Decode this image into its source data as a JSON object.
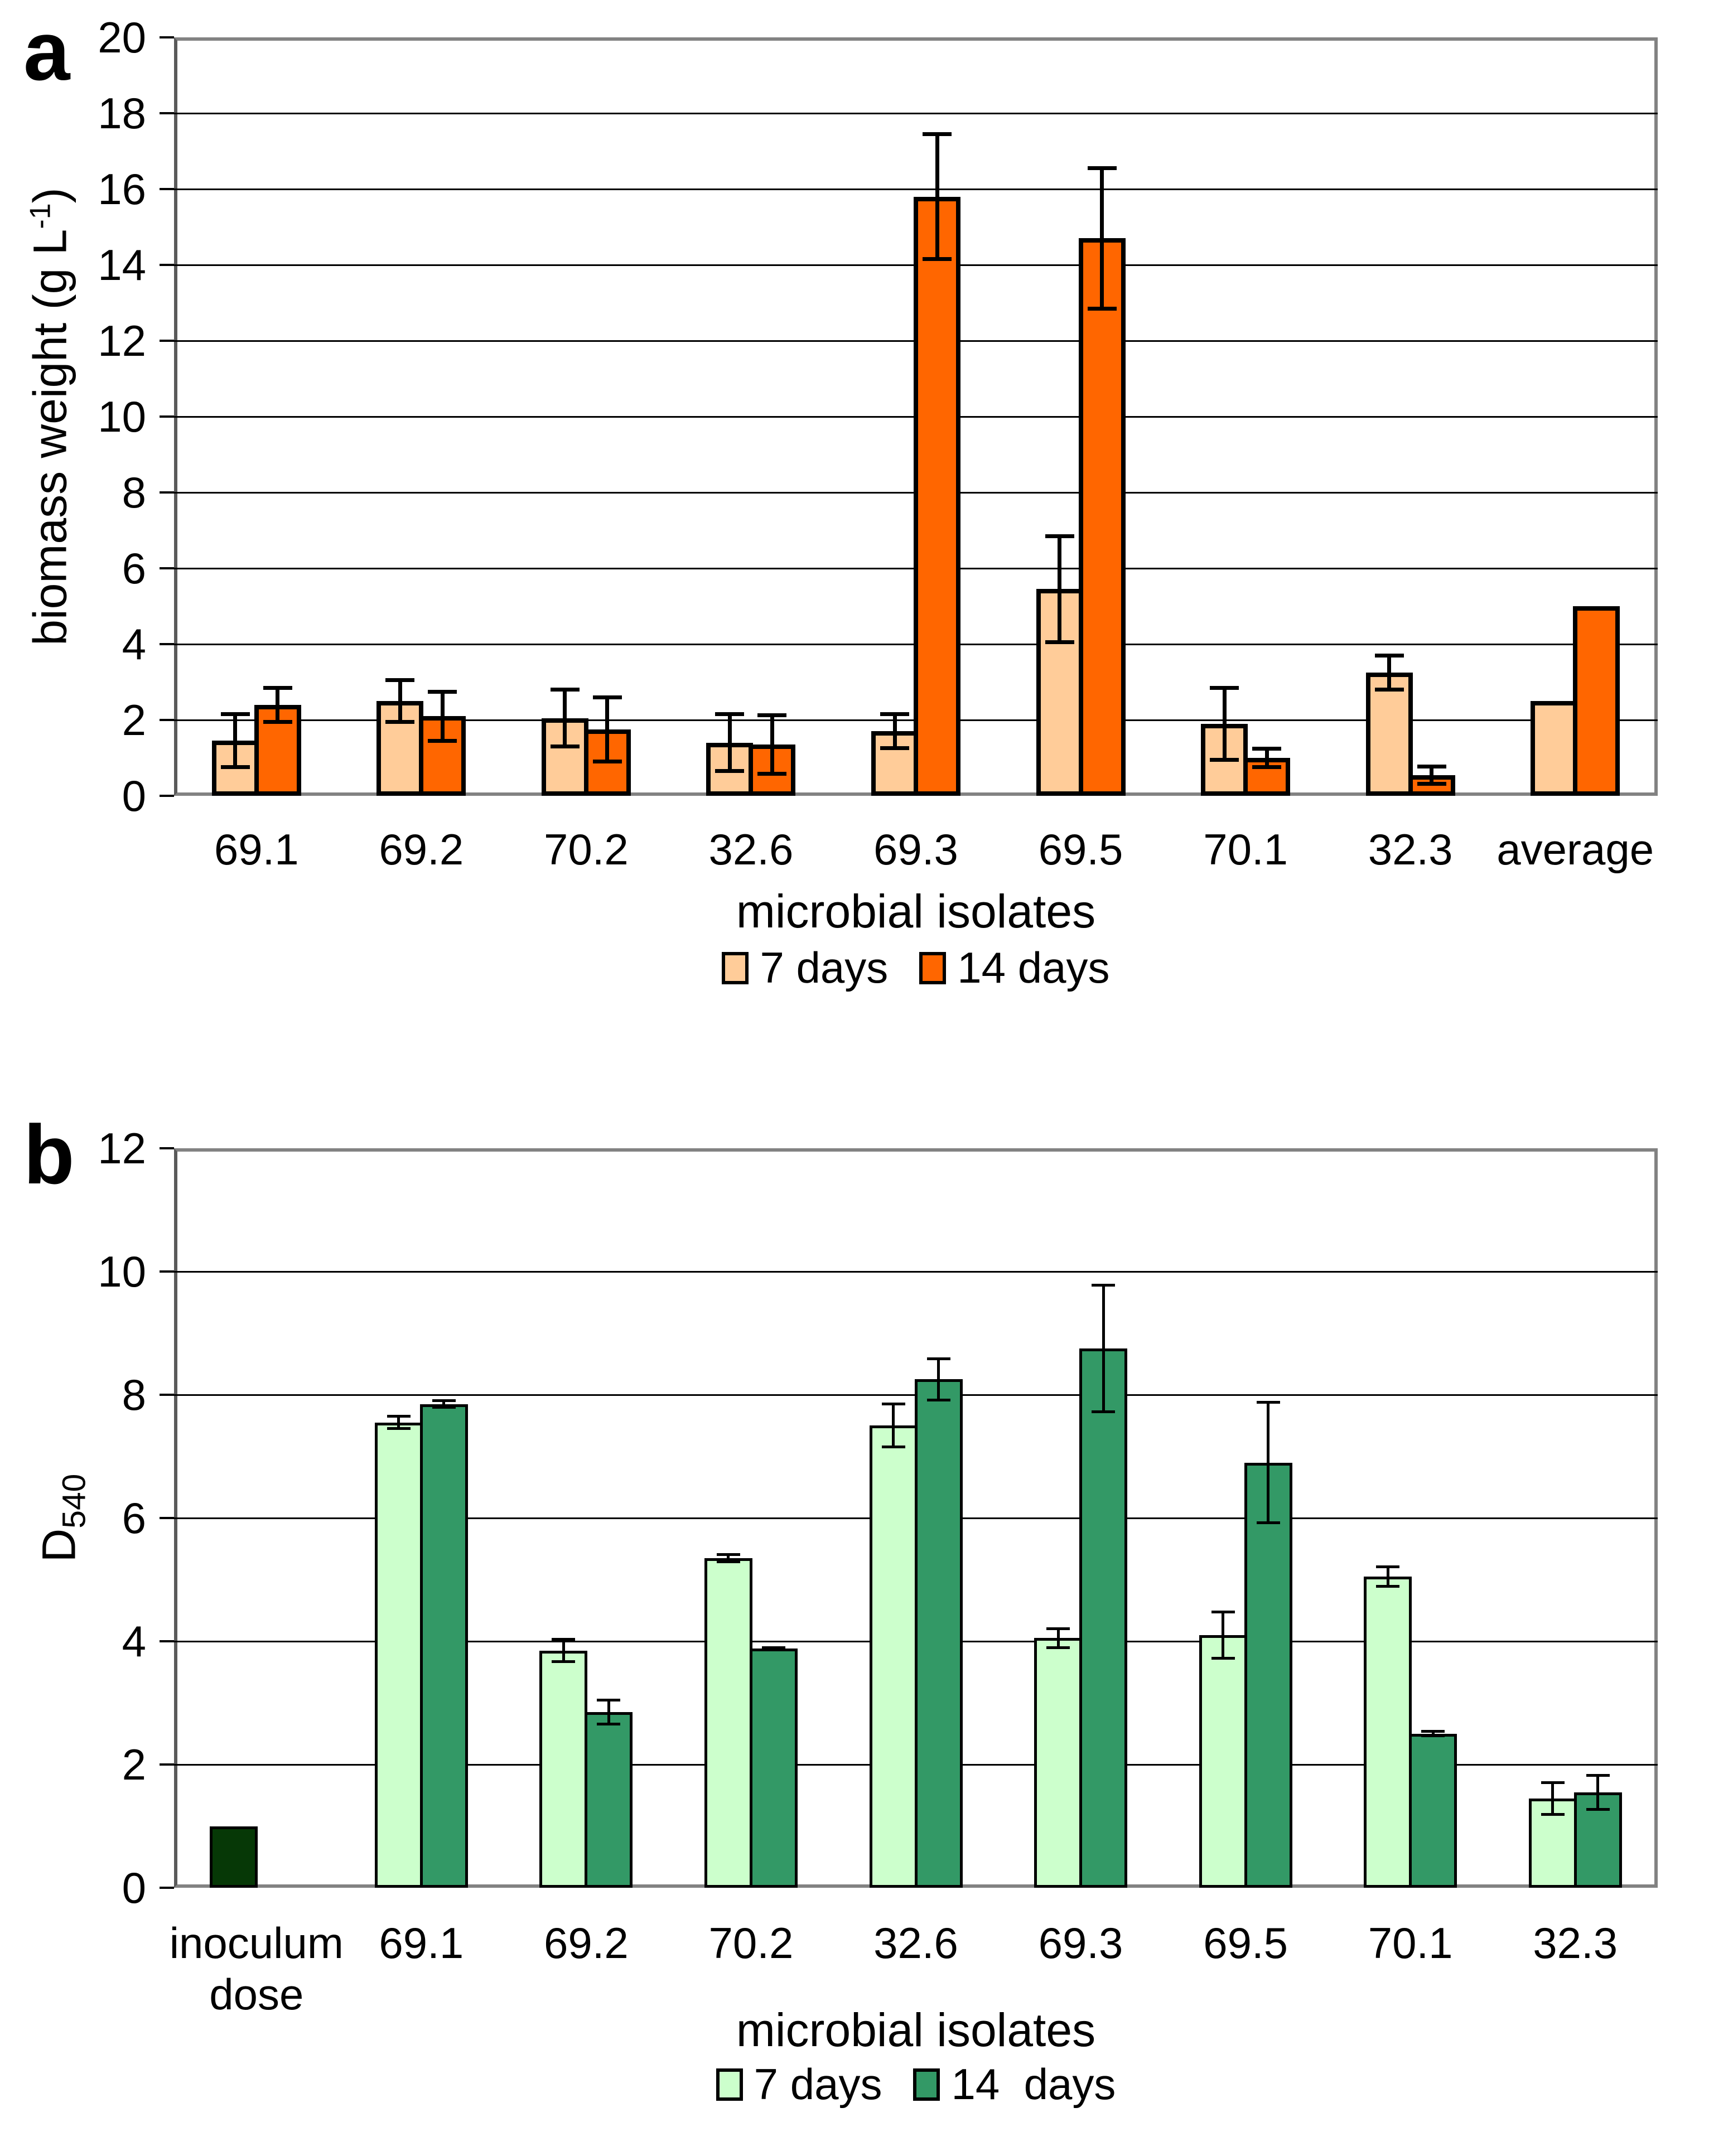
{
  "figure": {
    "panels": [
      {
        "panel_label": "a",
        "ylabel": {
          "main": "biomass weight (g L",
          "sup": "-1",
          "end": ")"
        },
        "xlabel": "microbial isolates"
      },
      {
        "panel_label": "b",
        "ylabel": {
          "main": "D",
          "sub": "540"
        },
        "xlabel": "microbial isolates"
      }
    ]
  },
  "chart_data": [
    {
      "panel": "a",
      "type": "bar",
      "title": "",
      "xlabel": "microbial isolates",
      "ylabel": "biomass weight (g L-1)",
      "ylim": [
        0,
        20
      ],
      "ytick_step": 2,
      "grid": true,
      "legend_position": "bottom",
      "categories": [
        "69.1",
        "69.2",
        "70.2",
        "32.6",
        "69.3",
        "69.5",
        "70.1",
        "32.3",
        "average"
      ],
      "series": [
        {
          "name": "7 days",
          "color": "#FFCC99",
          "values": [
            1.45,
            2.5,
            2.05,
            1.4,
            1.7,
            5.45,
            1.9,
            3.25,
            2.5
          ],
          "errors": [
            0.75,
            0.6,
            0.8,
            0.8,
            0.5,
            1.45,
            1.0,
            0.5,
            null
          ]
        },
        {
          "name": "14 days",
          "color": "#FF6600",
          "values": [
            2.4,
            2.1,
            1.75,
            1.35,
            15.8,
            14.7,
            1.0,
            0.55,
            5.0
          ],
          "errors": [
            0.5,
            0.7,
            0.9,
            0.82,
            1.7,
            1.9,
            0.3,
            0.28,
            null
          ]
        }
      ]
    },
    {
      "panel": "b",
      "type": "bar",
      "title": "",
      "xlabel": "microbial isolates",
      "ylabel": "D540",
      "ylim": [
        0,
        12
      ],
      "ytick_step": 2,
      "grid": true,
      "legend_position": "bottom",
      "categories": [
        "inoculum\ndose",
        "69.1",
        "69.2",
        "70.2",
        "32.6",
        "69.3",
        "69.5",
        "70.1",
        "32.3"
      ],
      "series": [
        {
          "name": "7 days",
          "color": "#CCFFCC",
          "values": [
            null,
            7.55,
            3.85,
            5.35,
            7.5,
            4.05,
            4.1,
            5.05,
            1.45
          ],
          "errors": [
            null,
            0.12,
            0.2,
            0.08,
            0.37,
            0.18,
            0.4,
            0.18,
            0.28
          ]
        },
        {
          "name": "14  days",
          "color": "#339966",
          "values": [
            null,
            7.85,
            2.85,
            3.88,
            8.25,
            8.75,
            6.9,
            2.5,
            1.55
          ],
          "errors": [
            null,
            0.08,
            0.22,
            0.04,
            0.36,
            1.05,
            1.0,
            0.06,
            0.3
          ]
        }
      ],
      "single_bars": [
        {
          "category_index": 0,
          "value": 1.0,
          "color": "#063806",
          "label": "inoculum dose"
        }
      ]
    }
  ]
}
